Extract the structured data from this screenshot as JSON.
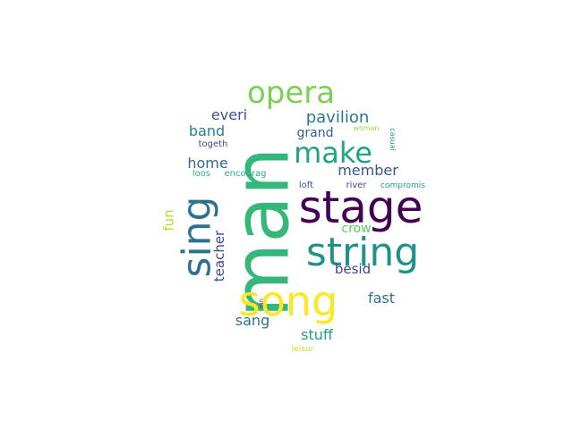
{
  "words": [
    {
      "id": "man",
      "text": "man",
      "color": "#35b779"
    },
    {
      "id": "stage",
      "text": "stage",
      "color": "#440154"
    },
    {
      "id": "song",
      "text": "song",
      "color": "#fde725"
    },
    {
      "id": "string",
      "text": "string",
      "color": "#21918c"
    },
    {
      "id": "sing",
      "text": "sing",
      "color": "#2c728e"
    },
    {
      "id": "opera",
      "text": "opera",
      "color": "#7ad151"
    },
    {
      "id": "make",
      "text": "make",
      "color": "#20a486"
    },
    {
      "id": "pavilion",
      "text": "pavilion",
      "color": "#2a788e"
    },
    {
      "id": "everi",
      "text": "everi",
      "color": "#3b528b"
    },
    {
      "id": "band",
      "text": "band",
      "color": "#26828e"
    },
    {
      "id": "grand",
      "text": "grand",
      "color": "#355f8d"
    },
    {
      "id": "home",
      "text": "home",
      "color": "#31688e"
    },
    {
      "id": "member",
      "text": "member",
      "color": "#39568c"
    },
    {
      "id": "teacher",
      "text": "teacher",
      "color": "#3e4a89"
    },
    {
      "id": "fun",
      "text": "fun",
      "color": "#b5de2b"
    },
    {
      "id": "crow",
      "text": "crow",
      "color": "#5ec962"
    },
    {
      "id": "besid",
      "text": "besid",
      "color": "#3e4989"
    },
    {
      "id": "fast",
      "text": "fast",
      "color": "#2c728e"
    },
    {
      "id": "sang",
      "text": "sang",
      "color": "#2c728e"
    },
    {
      "id": "stuff",
      "text": "stuff",
      "color": "#1f9e89"
    },
    {
      "id": "togeth",
      "text": "togeth",
      "color": "#414487"
    },
    {
      "id": "woman",
      "text": "woman",
      "color": "#9fda3a"
    },
    {
      "id": "casual",
      "text": "casual",
      "color": "#1f968b"
    },
    {
      "id": "loos",
      "text": "loos",
      "color": "#2fb47c"
    },
    {
      "id": "encourag",
      "text": "encourag",
      "color": "#25ac82"
    },
    {
      "id": "loft",
      "text": "loft",
      "color": "#3b528b"
    },
    {
      "id": "compromis",
      "text": "compromis",
      "color": "#20a386"
    },
    {
      "id": "inn",
      "text": "inn",
      "color": "#46327e"
    },
    {
      "id": "river",
      "text": "river",
      "color": "#3e4a89"
    },
    {
      "id": "leisur",
      "text": "leisur",
      "color": "#bddf26"
    }
  ]
}
